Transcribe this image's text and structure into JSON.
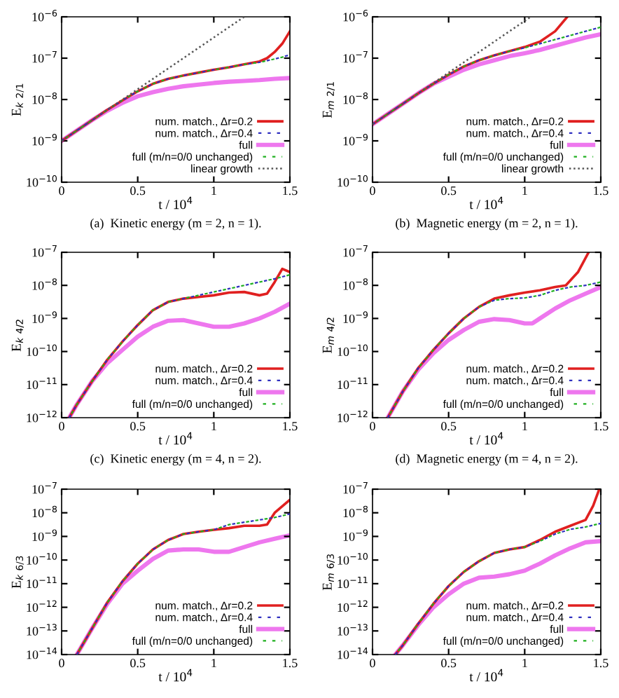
{
  "chart_data": [
    {
      "type": "line",
      "ylabel": "E$_{k 2/1}$",
      "xlabel": "t / 10$^{4}$",
      "annotations": [
        "(a)  Kinetic energy (m = 2, n = 1)."
      ],
      "log": "y",
      "legend": "bottom right",
      "grid": false,
      "xlim": [
        0,
        1.5
      ],
      "xticks": [
        0,
        0.5,
        1,
        1.5
      ],
      "ylim": [
        1e-10,
        1e-06
      ],
      "yticks": [
        {
          "value": 1e-10,
          "label": "10$^{−10}$"
        },
        {
          "value": 1e-09,
          "label": "10$^{−9}$"
        },
        {
          "value": 1e-08,
          "label": "10$^{−8}$"
        },
        {
          "value": 1e-07,
          "label": "10$^{−7}$"
        },
        {
          "value": 1e-06,
          "label": "10$^{−6}$"
        }
      ],
      "series": [
        {
          "name": "num. match., Δr=0.2",
          "color": "#e02020",
          "line_style": "solid",
          "x": [
            0,
            0.1,
            0.2,
            0.3,
            0.4,
            0.5,
            0.6,
            0.7,
            0.8,
            0.9,
            1.0,
            1.1,
            1.2,
            1.3,
            1.35,
            1.4,
            1.45,
            1.5
          ],
          "values": [
            1e-09,
            1.78e-09,
            3.16e-09,
            5.62e-09,
            9.55e-09,
            1.58e-08,
            2.4e-08,
            3.16e-08,
            3.8e-08,
            4.47e-08,
            5.25e-08,
            6.03e-08,
            7.08e-08,
            8.32e-08,
            1e-07,
            1.41e-07,
            2.24e-07,
            4.47e-07
          ]
        },
        {
          "name": "num. match., Δr=0.4",
          "color": "#3030c0",
          "line_style": "dashed",
          "x": [
            0,
            0.1,
            0.2,
            0.3,
            0.4,
            0.5,
            0.6,
            0.7,
            0.8,
            0.9,
            1.0,
            1.1,
            1.2,
            1.3,
            1.4,
            1.5
          ],
          "values": [
            1e-09,
            1.78e-09,
            3.16e-09,
            5.62e-09,
            9.55e-09,
            1.58e-08,
            2.4e-08,
            3.16e-08,
            3.8e-08,
            4.47e-08,
            5.25e-08,
            6.03e-08,
            7.08e-08,
            7.94e-08,
            9.55e-08,
            1.2e-07
          ]
        },
        {
          "name": "full",
          "color": "#ee77ee",
          "line_style": "solid",
          "x": [
            0,
            0.1,
            0.2,
            0.3,
            0.4,
            0.5,
            0.6,
            0.7,
            0.8,
            0.9,
            1.0,
            1.1,
            1.2,
            1.3,
            1.4,
            1.5
          ],
          "values": [
            1e-09,
            1.78e-09,
            3.16e-09,
            5.37e-09,
            8.32e-09,
            1.2e-08,
            1.51e-08,
            1.82e-08,
            2.09e-08,
            2.29e-08,
            2.51e-08,
            2.69e-08,
            2.82e-08,
            2.95e-08,
            3.16e-08,
            3.31e-08
          ]
        },
        {
          "name": "full (m/n=0/0 unchanged)",
          "color": "#20b020",
          "line_style": "dashed",
          "x": [
            0,
            0.1,
            0.2,
            0.3,
            0.4,
            0.5,
            0.6,
            0.7,
            0.8,
            0.9,
            1.0,
            1.1,
            1.2,
            1.3,
            1.4,
            1.5
          ],
          "values": [
            1e-09,
            1.78e-09,
            3.16e-09,
            5.62e-09,
            9.55e-09,
            1.58e-08,
            2.4e-08,
            3.16e-08,
            3.8e-08,
            4.47e-08,
            5.25e-08,
            6.03e-08,
            7.08e-08,
            7.94e-08,
            9.55e-08,
            1.17e-07
          ]
        },
        {
          "name": "linear growth",
          "color": "#555555",
          "line_style": "dotted",
          "x": [
            0,
            1.2
          ],
          "values": [
            1e-09,
            1e-06
          ]
        }
      ]
    },
    {
      "type": "line",
      "ylabel": "E$_{m 2/1}$",
      "xlabel": "t / 10$^{4}$",
      "annotations": [
        "(b)  Magnetic energy (m = 2, n = 1)."
      ],
      "log": "y",
      "legend": "bottom right",
      "grid": false,
      "xlim": [
        0,
        1.5
      ],
      "xticks": [
        0,
        0.5,
        1,
        1.5
      ],
      "ylim": [
        1e-10,
        1e-06
      ],
      "yticks": [
        {
          "value": 1e-10,
          "label": "10$^{−10}$"
        },
        {
          "value": 1e-09,
          "label": "10$^{−9}$"
        },
        {
          "value": 1e-08,
          "label": "10$^{−8}$"
        },
        {
          "value": 1e-07,
          "label": "10$^{−7}$"
        },
        {
          "value": 1e-06,
          "label": "10$^{−6}$"
        }
      ],
      "series": [
        {
          "name": "num. match., Δr=0.2",
          "color": "#e02020",
          "line_style": "solid",
          "x": [
            0,
            0.1,
            0.2,
            0.3,
            0.4,
            0.5,
            0.6,
            0.7,
            0.8,
            0.9,
            1.0,
            1.1,
            1.2,
            1.28
          ],
          "values": [
            2.51e-09,
            4.47e-09,
            7.94e-09,
            1.41e-08,
            2.4e-08,
            3.98e-08,
            6.31e-08,
            8.91e-08,
            1.17e-07,
            1.48e-07,
            1.86e-07,
            2.51e-07,
            4.47e-07,
            1e-06
          ]
        },
        {
          "name": "num. match., Δr=0.4",
          "color": "#3030c0",
          "line_style": "dashed",
          "x": [
            0,
            0.1,
            0.2,
            0.3,
            0.4,
            0.5,
            0.6,
            0.7,
            0.8,
            0.9,
            1.0,
            1.1,
            1.2,
            1.3,
            1.4,
            1.5
          ],
          "values": [
            2.51e-09,
            4.47e-09,
            7.94e-09,
            1.41e-08,
            2.4e-08,
            3.98e-08,
            6.31e-08,
            8.91e-08,
            1.17e-07,
            1.48e-07,
            1.78e-07,
            2.24e-07,
            2.82e-07,
            3.55e-07,
            4.47e-07,
            5.62e-07
          ]
        },
        {
          "name": "full",
          "color": "#ee77ee",
          "line_style": "solid",
          "x": [
            0,
            0.1,
            0.2,
            0.3,
            0.4,
            0.5,
            0.6,
            0.7,
            0.8,
            0.9,
            1.0,
            1.1,
            1.2,
            1.3,
            1.4,
            1.5
          ],
          "values": [
            2.51e-09,
            4.47e-09,
            7.94e-09,
            1.41e-08,
            2.4e-08,
            3.55e-08,
            5.25e-08,
            7.08e-08,
            8.91e-08,
            1.12e-07,
            1.32e-07,
            1.58e-07,
            2e-07,
            2.51e-07,
            3.16e-07,
            3.8e-07
          ]
        },
        {
          "name": "full (m/n=0/0 unchanged)",
          "color": "#20b020",
          "line_style": "dashed",
          "x": [
            0,
            0.1,
            0.2,
            0.3,
            0.4,
            0.5,
            0.6,
            0.7,
            0.8,
            0.9,
            1.0,
            1.1,
            1.2,
            1.3,
            1.4,
            1.5
          ],
          "values": [
            2.51e-09,
            4.47e-09,
            7.94e-09,
            1.41e-08,
            2.4e-08,
            3.98e-08,
            6.31e-08,
            8.91e-08,
            1.17e-07,
            1.48e-07,
            1.78e-07,
            2.24e-07,
            2.82e-07,
            3.55e-07,
            4.47e-07,
            5.62e-07
          ]
        },
        {
          "name": "linear growth",
          "color": "#555555",
          "line_style": "dotted",
          "x": [
            0,
            1.04
          ],
          "values": [
            2.51e-09,
            1e-06
          ]
        }
      ]
    },
    {
      "type": "line",
      "ylabel": "E$_{k 4/2}$",
      "xlabel": "t / 10$^{4}$",
      "annotations": [
        "(c)  Kinetic energy (m = 4, n = 2)."
      ],
      "log": "y",
      "legend": "bottom right",
      "grid": false,
      "xlim": [
        0,
        1.5
      ],
      "xticks": [
        0,
        0.5,
        1,
        1.5
      ],
      "ylim": [
        1e-12,
        1e-07
      ],
      "yticks": [
        {
          "value": 1e-12,
          "label": "10$^{−12}$"
        },
        {
          "value": 1e-11,
          "label": "10$^{−11}$"
        },
        {
          "value": 1e-10,
          "label": "10$^{−10}$"
        },
        {
          "value": 1e-09,
          "label": "10$^{−9}$"
        },
        {
          "value": 1e-08,
          "label": "10$^{−8}$"
        },
        {
          "value": 1e-07,
          "label": "10$^{−7}$"
        }
      ],
      "series": [
        {
          "name": "num. match., Δr=0.2",
          "color": "#e02020",
          "line_style": "solid",
          "x": [
            0.05,
            0.1,
            0.2,
            0.3,
            0.4,
            0.5,
            0.6,
            0.7,
            0.8,
            0.9,
            1.0,
            1.1,
            1.2,
            1.3,
            1.35,
            1.4,
            1.45,
            1.5
          ],
          "values": [
            1e-12,
            2.51e-12,
            1.26e-11,
            5.62e-11,
            2e-10,
            6.31e-10,
            1.78e-09,
            3.16e-09,
            3.98e-09,
            4.47e-09,
            5.01e-09,
            6.03e-09,
            6.31e-09,
            5.01e-09,
            5.62e-09,
            1.26e-08,
            3.16e-08,
            2.51e-08
          ]
        },
        {
          "name": "num. match., Δr=0.4",
          "color": "#3030c0",
          "line_style": "dashed",
          "x": [
            0.05,
            0.1,
            0.2,
            0.3,
            0.4,
            0.5,
            0.6,
            0.7,
            0.8,
            0.9,
            1.0,
            1.1,
            1.2,
            1.3,
            1.4,
            1.5
          ],
          "values": [
            1e-12,
            2.51e-12,
            1.26e-11,
            5.62e-11,
            2e-10,
            6.31e-10,
            1.78e-09,
            3.16e-09,
            3.98e-09,
            5.01e-09,
            6.31e-09,
            7.94e-09,
            1e-08,
            1.26e-08,
            1.58e-08,
            2.09e-08
          ]
        },
        {
          "name": "full",
          "color": "#ee77ee",
          "line_style": "solid",
          "x": [
            0.05,
            0.1,
            0.2,
            0.3,
            0.4,
            0.5,
            0.6,
            0.7,
            0.8,
            0.9,
            1.0,
            1.1,
            1.2,
            1.3,
            1.4,
            1.5
          ],
          "values": [
            1e-12,
            2.51e-12,
            1.26e-11,
            4.47e-11,
            1.12e-10,
            2.82e-10,
            5.62e-10,
            8.51e-10,
            8.91e-10,
            7.08e-10,
            5.62e-10,
            5.62e-10,
            7.08e-10,
            1e-09,
            1.58e-09,
            2.82e-09
          ]
        },
        {
          "name": "full (m/n=0/0 unchanged)",
          "color": "#20b020",
          "line_style": "dashed",
          "x": [
            0.05,
            0.1,
            0.2,
            0.3,
            0.4,
            0.5,
            0.6,
            0.7,
            0.8,
            0.9,
            1.0,
            1.1,
            1.2,
            1.3,
            1.4,
            1.5
          ],
          "values": [
            1e-12,
            2.51e-12,
            1.26e-11,
            5.62e-11,
            2e-10,
            6.31e-10,
            1.78e-09,
            3.16e-09,
            3.98e-09,
            5.01e-09,
            6.31e-09,
            7.94e-09,
            1e-08,
            1.26e-08,
            1.58e-08,
            2.09e-08
          ]
        }
      ]
    },
    {
      "type": "line",
      "ylabel": "E$_{m 4/2}$",
      "xlabel": "t / 10$^{4}$",
      "annotations": [
        "(d)  Magnetic energy (m = 4, n = 2)."
      ],
      "log": "y",
      "legend": "bottom right",
      "grid": false,
      "xlim": [
        0,
        1.5
      ],
      "xticks": [
        0,
        0.5,
        1,
        1.5
      ],
      "ylim": [
        1e-12,
        1e-07
      ],
      "yticks": [
        {
          "value": 1e-12,
          "label": "10$^{−12}$"
        },
        {
          "value": 1e-11,
          "label": "10$^{−11}$"
        },
        {
          "value": 1e-10,
          "label": "10$^{−10}$"
        },
        {
          "value": 1e-09,
          "label": "10$^{−9}$"
        },
        {
          "value": 1e-08,
          "label": "10$^{−8}$"
        },
        {
          "value": 1e-07,
          "label": "10$^{−7}$"
        }
      ],
      "series": [
        {
          "name": "num. match., Δr=0.2",
          "color": "#e02020",
          "line_style": "solid",
          "x": [
            0.1,
            0.2,
            0.3,
            0.4,
            0.5,
            0.6,
            0.7,
            0.8,
            0.9,
            1.0,
            1.1,
            1.2,
            1.27,
            1.35,
            1.42
          ],
          "values": [
            1e-12,
            6.31e-12,
            3.16e-11,
            1.12e-10,
            3.55e-10,
            1e-09,
            2.24e-09,
            3.98e-09,
            5.01e-09,
            6.03e-09,
            7.08e-09,
            8.91e-09,
            1e-08,
            2.51e-08,
            1e-07
          ]
        },
        {
          "name": "num. match., Δr=0.4",
          "color": "#3030c0",
          "line_style": "dashed",
          "x": [
            0.1,
            0.2,
            0.3,
            0.4,
            0.5,
            0.6,
            0.7,
            0.8,
            0.9,
            1.0,
            1.1,
            1.2,
            1.3,
            1.4,
            1.5
          ],
          "values": [
            1e-12,
            6.31e-12,
            3.16e-11,
            1.12e-10,
            3.55e-10,
            1e-09,
            2.24e-09,
            3.55e-09,
            3.98e-09,
            4.17e-09,
            5.01e-09,
            7.08e-09,
            8.91e-09,
            1e-08,
            1.26e-08
          ]
        },
        {
          "name": "full",
          "color": "#ee77ee",
          "line_style": "solid",
          "x": [
            0.1,
            0.2,
            0.3,
            0.4,
            0.5,
            0.6,
            0.7,
            0.8,
            0.9,
            1.0,
            1.05,
            1.1,
            1.2,
            1.3,
            1.4,
            1.5
          ],
          "values": [
            1e-12,
            6.31e-12,
            2.82e-11,
            8.91e-11,
            2.24e-10,
            4.47e-10,
            7.94e-10,
            9.55e-10,
            8.91e-10,
            7.08e-10,
            7.08e-10,
            1e-09,
            2e-09,
            3.55e-09,
            5.62e-09,
            8.91e-09
          ]
        },
        {
          "name": "full (m/n=0/0 unchanged)",
          "color": "#20b020",
          "line_style": "dashed",
          "x": [
            0.1,
            0.2,
            0.3,
            0.4,
            0.5,
            0.6,
            0.7,
            0.8,
            0.9,
            1.0,
            1.1,
            1.2,
            1.3,
            1.4,
            1.5
          ],
          "values": [
            1e-12,
            6.31e-12,
            3.16e-11,
            1.12e-10,
            3.55e-10,
            1e-09,
            2.24e-09,
            3.55e-09,
            3.98e-09,
            4.17e-09,
            5.01e-09,
            7.08e-09,
            8.91e-09,
            1e-08,
            1.26e-08
          ]
        }
      ]
    },
    {
      "type": "line",
      "ylabel": "E$_{k 6/3}$",
      "xlabel": "t / 10$^{4}$",
      "log": "y",
      "legend": "bottom right",
      "grid": false,
      "xlim": [
        0,
        1.5
      ],
      "xticks": [
        0,
        0.5,
        1,
        1.5
      ],
      "ylim": [
        1e-14,
        1e-07
      ],
      "yticks": [
        {
          "value": 1e-14,
          "label": "10$^{−14}$"
        },
        {
          "value": 1e-13,
          "label": "10$^{−13}$"
        },
        {
          "value": 1e-12,
          "label": "10$^{−12}$"
        },
        {
          "value": 1e-11,
          "label": "10$^{−11}$"
        },
        {
          "value": 1e-10,
          "label": "10$^{−10}$"
        },
        {
          "value": 1e-09,
          "label": "10$^{−9}$"
        },
        {
          "value": 1e-08,
          "label": "10$^{−8}$"
        },
        {
          "value": 1e-07,
          "label": "10$^{−7}$"
        }
      ],
      "series": [
        {
          "name": "num. match., Δr=0.2",
          "color": "#e02020",
          "line_style": "solid",
          "x": [
            0.1,
            0.2,
            0.3,
            0.4,
            0.5,
            0.6,
            0.7,
            0.8,
            0.9,
            1.0,
            1.1,
            1.2,
            1.3,
            1.35,
            1.4,
            1.5
          ],
          "values": [
            1e-14,
            1.26e-13,
            1.58e-12,
            1.26e-11,
            7.08e-11,
            2.82e-10,
            7.08e-10,
            1.26e-09,
            1.58e-09,
            1.91e-09,
            2.24e-09,
            2.82e-09,
            2.82e-09,
            3.16e-09,
            1e-08,
            3.55e-08
          ]
        },
        {
          "name": "num. match., Δr=0.4",
          "color": "#3030c0",
          "line_style": "dashed",
          "x": [
            0.1,
            0.2,
            0.3,
            0.4,
            0.5,
            0.6,
            0.7,
            0.8,
            0.9,
            1.0,
            1.1,
            1.2,
            1.3,
            1.4,
            1.5
          ],
          "values": [
            1e-14,
            1.26e-13,
            1.58e-12,
            1.26e-11,
            7.08e-11,
            2.82e-10,
            7.08e-10,
            1.26e-09,
            1.58e-09,
            1.91e-09,
            3.16e-09,
            3.98e-09,
            5.01e-09,
            6.31e-09,
            8.91e-09
          ]
        },
        {
          "name": "full",
          "color": "#ee77ee",
          "line_style": "solid",
          "x": [
            0.1,
            0.2,
            0.3,
            0.4,
            0.5,
            0.6,
            0.7,
            0.8,
            0.9,
            1.0,
            1.1,
            1.2,
            1.3,
            1.4,
            1.5
          ],
          "values": [
            1e-14,
            1.26e-13,
            1.41e-12,
            1e-11,
            3.55e-11,
            1.12e-10,
            2.51e-10,
            2.82e-10,
            2.82e-10,
            2.24e-10,
            2.24e-10,
            3.55e-10,
            5.62e-10,
            7.94e-10,
            1.12e-09
          ]
        },
        {
          "name": "full (m/n=0/0 unchanged)",
          "color": "#20b020",
          "line_style": "dashed",
          "x": [
            0.1,
            0.2,
            0.3,
            0.4,
            0.5,
            0.6,
            0.7,
            0.8,
            0.9,
            1.0,
            1.1,
            1.2,
            1.3,
            1.4,
            1.5
          ],
          "values": [
            1e-14,
            1.26e-13,
            1.58e-12,
            1.26e-11,
            7.08e-11,
            2.82e-10,
            7.08e-10,
            1.26e-09,
            1.58e-09,
            1.91e-09,
            3.16e-09,
            3.98e-09,
            5.01e-09,
            6.31e-09,
            8.91e-09
          ]
        }
      ]
    },
    {
      "type": "line",
      "ylabel": "E$_{m 6/3}$",
      "xlabel": "t / 10$^{4}$",
      "log": "y",
      "legend": "bottom right",
      "grid": false,
      "xlim": [
        0,
        1.5
      ],
      "xticks": [
        0,
        0.5,
        1,
        1.5
      ],
      "ylim": [
        1e-14,
        1e-07
      ],
      "yticks": [
        {
          "value": 1e-14,
          "label": "10$^{−14}$"
        },
        {
          "value": 1e-13,
          "label": "10$^{−13}$"
        },
        {
          "value": 1e-12,
          "label": "10$^{−12}$"
        },
        {
          "value": 1e-11,
          "label": "10$^{−11}$"
        },
        {
          "value": 1e-10,
          "label": "10$^{−10}$"
        },
        {
          "value": 1e-09,
          "label": "10$^{−9}$"
        },
        {
          "value": 1e-08,
          "label": "10$^{−8}$"
        },
        {
          "value": 1e-07,
          "label": "10$^{−7}$"
        }
      ],
      "series": [
        {
          "name": "num. match., Δr=0.2",
          "color": "#e02020",
          "line_style": "solid",
          "x": [
            0.15,
            0.2,
            0.3,
            0.4,
            0.5,
            0.6,
            0.7,
            0.8,
            0.9,
            1.0,
            1.1,
            1.2,
            1.3,
            1.4,
            1.45,
            1.49
          ],
          "values": [
            1e-14,
            2.51e-14,
            2e-13,
            1.41e-12,
            7.94e-12,
            3.16e-11,
            8.91e-11,
            2e-10,
            2.82e-10,
            3.55e-10,
            7.08e-10,
            1.58e-09,
            2.82e-09,
            5.01e-09,
            2e-08,
            1e-07
          ]
        },
        {
          "name": "num. match., Δr=0.4",
          "color": "#3030c0",
          "line_style": "dashed",
          "x": [
            0.15,
            0.2,
            0.3,
            0.4,
            0.5,
            0.6,
            0.7,
            0.8,
            0.9,
            1.0,
            1.1,
            1.2,
            1.3,
            1.4,
            1.5
          ],
          "values": [
            1e-14,
            2.51e-14,
            2e-13,
            1.41e-12,
            7.94e-12,
            3.16e-11,
            8.91e-11,
            2e-10,
            2.82e-10,
            3.55e-10,
            6.31e-10,
            1.26e-09,
            2e-09,
            2.51e-09,
            3.55e-09
          ]
        },
        {
          "name": "full",
          "color": "#ee77ee",
          "line_style": "solid",
          "x": [
            0.15,
            0.2,
            0.3,
            0.4,
            0.5,
            0.6,
            0.7,
            0.8,
            0.9,
            1.0,
            1.1,
            1.2,
            1.3,
            1.4,
            1.5
          ],
          "values": [
            1e-14,
            2.51e-14,
            1.78e-13,
            1e-12,
            3.55e-12,
            1e-11,
            1.78e-11,
            2e-11,
            2.51e-11,
            3.55e-11,
            7.08e-11,
            1.58e-10,
            3.16e-10,
            5.62e-10,
            6.31e-10
          ]
        },
        {
          "name": "full (m/n=0/0 unchanged)",
          "color": "#20b020",
          "line_style": "dashed",
          "x": [
            0.15,
            0.2,
            0.3,
            0.4,
            0.5,
            0.6,
            0.7,
            0.8,
            0.9,
            1.0,
            1.1,
            1.2,
            1.3,
            1.4,
            1.5
          ],
          "values": [
            1e-14,
            2.51e-14,
            2e-13,
            1.41e-12,
            7.94e-12,
            3.16e-11,
            8.91e-11,
            2e-10,
            2.82e-10,
            3.55e-10,
            6.31e-10,
            1.26e-09,
            2e-09,
            2.51e-09,
            3.55e-09
          ]
        }
      ]
    }
  ]
}
